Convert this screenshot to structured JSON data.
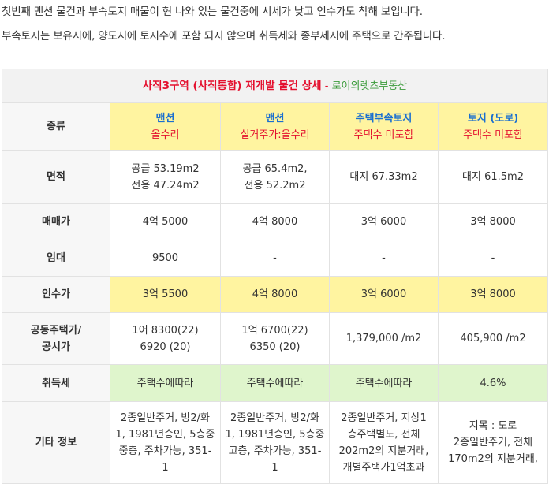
{
  "intro": {
    "line1": "첫번째 맨션 물건과 부속토지 매물이 현 나와 있는 물건중에 시세가 낮고 인수가도 착해 보입니다.",
    "line2": "부속토지는 보유시에, 양도시에 토지수에 포함 되지 않으며 취득세와 종부세시에 주택으로 간주됩니다."
  },
  "table": {
    "title": "사직3구역 (사직통합) 재개발 물건 상세",
    "separator": " - ",
    "agency": "로이의렛츠부동산",
    "labels": {
      "type": "종류",
      "area": "면적",
      "price": "매매가",
      "lease": "임대",
      "takeover": "인수가",
      "public_price_1": "공동주택가/",
      "public_price_2": "공시가",
      "acq_tax": "취득세",
      "etc": "기타 정보"
    },
    "columns": [
      {
        "type_main": "맨션",
        "type_sub": "올수리",
        "area_1": "공급 53.19m2",
        "area_2": "전용 47.24m2",
        "price": "4억 5000",
        "lease": "9500",
        "takeover": "3억 5500",
        "public_1": "1어 8300(22)",
        "public_2": "6920 (20)",
        "acq_tax": "주택수에따라",
        "etc": [
          "2종일반주거, 방2/화",
          "1, 1981년승인, 5층중",
          "중층, 주차가능, 351-",
          "1"
        ]
      },
      {
        "type_main": "맨션",
        "type_sub": "실거주가:올수리",
        "area_1": "공급 65.4m2,",
        "area_2": "전용 52.2m2",
        "price": "4억 8000",
        "lease": "-",
        "takeover": "4억 8000",
        "public_1": "1억 6700(22)",
        "public_2": "6350 (20)",
        "acq_tax": "주택수에따라",
        "etc": [
          "2종일반주거, 방2/화",
          "1, 1981년승인, 5층중",
          "고층, 주차가능, 351-",
          "1"
        ]
      },
      {
        "type_main": "주택부속토지",
        "type_sub": "주택수 미포함",
        "area_1": "대지 67.33m2",
        "area_2": "",
        "price": "3억 6000",
        "lease": "-",
        "takeover": "3억 6000",
        "public_1": "1,379,000 /m2",
        "public_2": "",
        "acq_tax": "주택수에따라",
        "etc": [
          "2종일반주거, 지상1",
          "층주택별도, 전체",
          "202m2의 지분거래,",
          "개별주택가1억초과"
        ]
      },
      {
        "type_main": "토지 (도로)",
        "type_sub": "주택수 미포함",
        "area_1": "대지 61.5m2",
        "area_2": "",
        "price": "3억 8000",
        "lease": "-",
        "takeover": "3억 8000",
        "public_1": "405,900 /m2",
        "public_2": "",
        "acq_tax": "4.6%",
        "etc": [
          "지목 : 도로",
          "2종일반주거, 전체",
          "170m2의 지분거래,"
        ]
      }
    ]
  },
  "colors": {
    "title_red": "#e4102e",
    "agency_green": "#3a9b3a",
    "label_blue": "#2476c6",
    "highlight_yellow": "#fff4a0",
    "highlight_green": "#dff5cc",
    "value_blue": "#1a6fd0"
  }
}
